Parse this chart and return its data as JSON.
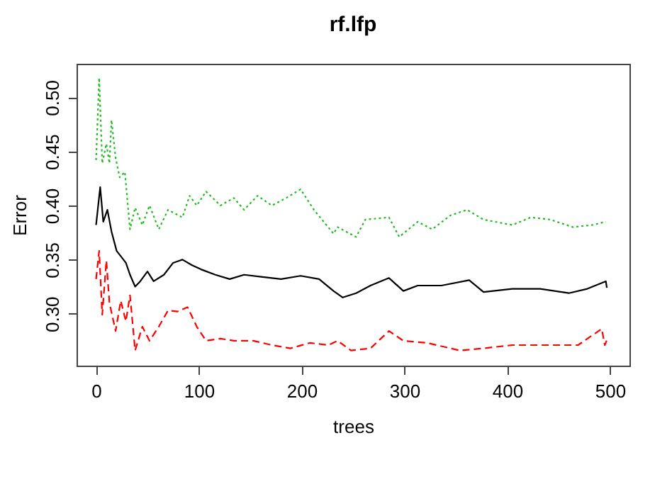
{
  "chart_data": {
    "type": "line",
    "title": "rf.lfp",
    "xlabel": "trees",
    "ylabel": "Error",
    "xlim": [
      -19,
      519
    ],
    "ylim": [
      0.252,
      0.531
    ],
    "xticks": [
      0,
      100,
      200,
      300,
      400,
      500
    ],
    "yticks": [
      {
        "value": 0.3,
        "label": "0.30"
      },
      {
        "value": 0.35,
        "label": "0.35"
      },
      {
        "value": 0.4,
        "label": "0.40"
      },
      {
        "value": 0.45,
        "label": "0.45"
      },
      {
        "value": 0.5,
        "label": "0.50"
      }
    ],
    "grid": false,
    "legend": false,
    "series": [
      {
        "color": "#000000",
        "line_style": "solid",
        "x": [
          0,
          4,
          7,
          11,
          15,
          20,
          25,
          29,
          33,
          38,
          43,
          50,
          56,
          66,
          75,
          84,
          93,
          102,
          116,
          130,
          144,
          162,
          180,
          199,
          217,
          231,
          240,
          253,
          267,
          285,
          299,
          313,
          336,
          363,
          377,
          405,
          432,
          460,
          478,
          496,
          497
        ],
        "values": [
          0.382,
          0.417,
          0.385,
          0.396,
          0.376,
          0.358,
          0.352,
          0.347,
          0.336,
          0.325,
          0.33,
          0.339,
          0.33,
          0.336,
          0.347,
          0.35,
          0.345,
          0.341,
          0.336,
          0.332,
          0.336,
          0.334,
          0.332,
          0.335,
          0.332,
          0.321,
          0.315,
          0.319,
          0.326,
          0.333,
          0.321,
          0.326,
          0.326,
          0.331,
          0.32,
          0.323,
          0.323,
          0.319,
          0.323,
          0.33,
          0.324
        ]
      },
      {
        "color": "#ff0000",
        "line_style": "dashed",
        "x": [
          0,
          3,
          6,
          10,
          13,
          19,
          24,
          29,
          33,
          38,
          45,
          52,
          61,
          70,
          79,
          89,
          98,
          107,
          121,
          134,
          153,
          171,
          189,
          208,
          226,
          235,
          248,
          267,
          285,
          299,
          322,
          354,
          377,
          405,
          437,
          469,
          492,
          495,
          498
        ],
        "values": [
          0.332,
          0.358,
          0.299,
          0.349,
          0.31,
          0.284,
          0.312,
          0.293,
          0.317,
          0.266,
          0.288,
          0.275,
          0.288,
          0.303,
          0.302,
          0.306,
          0.288,
          0.275,
          0.277,
          0.275,
          0.275,
          0.271,
          0.268,
          0.273,
          0.271,
          0.275,
          0.266,
          0.268,
          0.284,
          0.275,
          0.273,
          0.266,
          0.268,
          0.271,
          0.271,
          0.271,
          0.286,
          0.271,
          0.278
        ]
      },
      {
        "color": "#22bb22",
        "line_style": "dotted",
        "x": [
          0,
          3,
          6,
          10,
          13,
          15,
          19,
          23,
          28,
          33,
          38,
          45,
          52,
          61,
          70,
          84,
          91,
          98,
          107,
          121,
          134,
          144,
          157,
          171,
          185,
          199,
          212,
          231,
          235,
          253,
          262,
          285,
          295,
          313,
          327,
          345,
          361,
          377,
          405,
          423,
          442,
          464,
          483,
          496
        ],
        "values": [
          0.442,
          0.518,
          0.439,
          0.457,
          0.439,
          0.479,
          0.444,
          0.426,
          0.431,
          0.378,
          0.398,
          0.382,
          0.4,
          0.378,
          0.396,
          0.389,
          0.409,
          0.4,
          0.413,
          0.4,
          0.407,
          0.396,
          0.409,
          0.4,
          0.407,
          0.415,
          0.396,
          0.374,
          0.38,
          0.371,
          0.387,
          0.389,
          0.371,
          0.385,
          0.378,
          0.391,
          0.396,
          0.387,
          0.382,
          0.389,
          0.387,
          0.38,
          0.382,
          0.385
        ]
      }
    ]
  }
}
